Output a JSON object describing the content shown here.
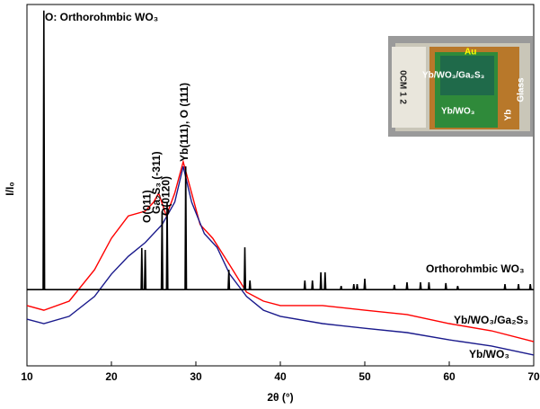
{
  "chart_data": {
    "type": "line",
    "title": "O: Orthorohmbic WO₃",
    "x_label": "2θ (°)",
    "y_label": "I/I₀",
    "xlim": [
      10,
      70
    ],
    "xticks": [
      10,
      20,
      30,
      40,
      50,
      60,
      70
    ],
    "ylim": [
      0,
      100
    ],
    "annotations": [
      {
        "text": "O(011)",
        "x": 24.3
      },
      {
        "text": "Ga₂S₃ (-311)",
        "x": 25.4
      },
      {
        "text": "O(0120)",
        "x": 26.5
      },
      {
        "text": "Yb(111), O (111)",
        "x": 28.7
      }
    ],
    "series": [
      {
        "name": "Orthorohmbic WO₃",
        "color": "#000000",
        "x": [
          10,
          11.92,
          12.0,
          12.08,
          23.52,
          23.6,
          23.68,
          23.92,
          24.0,
          24.08,
          25.92,
          26.0,
          26.08,
          26.52,
          26.6,
          26.68,
          28.72,
          28.8,
          28.88,
          33.82,
          33.9,
          33.98,
          35.72,
          35.8,
          35.88,
          36.32,
          36.4,
          36.48,
          42.82,
          42.9,
          42.98,
          43.72,
          43.8,
          43.88,
          44.72,
          44.8,
          44.88,
          45.22,
          45.3,
          45.38,
          47.12,
          47.2,
          47.28,
          48.62,
          48.7,
          48.78,
          49.02,
          49.1,
          49.18,
          49.92,
          50.0,
          50.08,
          53.42,
          53.5,
          53.58,
          54.92,
          55.0,
          55.08,
          56.52,
          56.6,
          56.68,
          57.52,
          57.6,
          57.68,
          59.52,
          59.6,
          59.68,
          60.92,
          61.0,
          61.08,
          66.52,
          66.6,
          66.68,
          68.12,
          68.2,
          68.28,
          69.52,
          69.6,
          69.68,
          70
        ],
        "values": [
          21.1,
          21.1,
          98.3,
          21.1,
          21.1,
          32.6,
          21.1,
          21.1,
          32.1,
          21.1,
          21.1,
          42.8,
          21.1,
          21.1,
          45.3,
          21.1,
          21.1,
          55.2,
          21.1,
          21.1,
          26.6,
          21.1,
          21.1,
          32.8,
          21.1,
          21.1,
          23.6,
          21.1,
          21.1,
          23.6,
          21.1,
          21.1,
          23.6,
          21.1,
          21.1,
          25.9,
          21.1,
          21.1,
          25.9,
          21.1,
          21.1,
          22.1,
          21.1,
          21.1,
          22.6,
          21.1,
          21.1,
          22.6,
          21.1,
          21.1,
          24.1,
          21.1,
          21.1,
          22.4,
          21.1,
          21.1,
          23.1,
          21.1,
          21.1,
          23.1,
          21.1,
          21.1,
          23.1,
          21.1,
          21.1,
          22.9,
          21.1,
          21.1,
          22.1,
          21.1,
          21.1,
          22.6,
          21.1,
          21.1,
          22.6,
          21.1,
          21.1,
          22.6,
          21.1,
          21.1
        ]
      },
      {
        "name": "Yb/WO₃/Ga₂S₃",
        "color": "#ff0000",
        "x": [
          10,
          12,
          15,
          18,
          20,
          22,
          24,
          25,
          25.6,
          26.5,
          27.5,
          28.5,
          29.5,
          30.5,
          32,
          34,
          36,
          38,
          40,
          45,
          50,
          55,
          60,
          65,
          70
        ],
        "values": [
          16.7,
          15.4,
          17.9,
          26.6,
          35.3,
          41.5,
          42.8,
          45.3,
          47.8,
          41.5,
          47.8,
          56.5,
          47.8,
          39.1,
          35.3,
          27.9,
          20.4,
          17.9,
          16.7,
          16.7,
          15.4,
          14.2,
          11.7,
          9.7,
          6.7
        ]
      },
      {
        "name": "Yb/WO₃",
        "color": "#1a1a8c",
        "x": [
          10,
          12,
          15,
          18,
          20,
          22,
          24,
          26,
          27.5,
          28.5,
          29.5,
          31,
          32.5,
          34,
          36,
          38,
          40,
          45,
          50,
          55,
          60,
          65,
          70
        ],
        "values": [
          12.9,
          11.7,
          13.7,
          19.2,
          25.4,
          30.3,
          34.1,
          39.1,
          45.3,
          55.2,
          45.3,
          36.6,
          32.8,
          25.4,
          19.2,
          15.4,
          13.7,
          11.7,
          10.4,
          9.2,
          7.2,
          5.5,
          3.0
        ]
      }
    ]
  },
  "inset": {
    "labels": [
      "Au",
      "Yb/WO₃/Ga₂S₃",
      "Yb/WO₃",
      "Yb",
      "Glass",
      "0CM 1 2"
    ]
  }
}
